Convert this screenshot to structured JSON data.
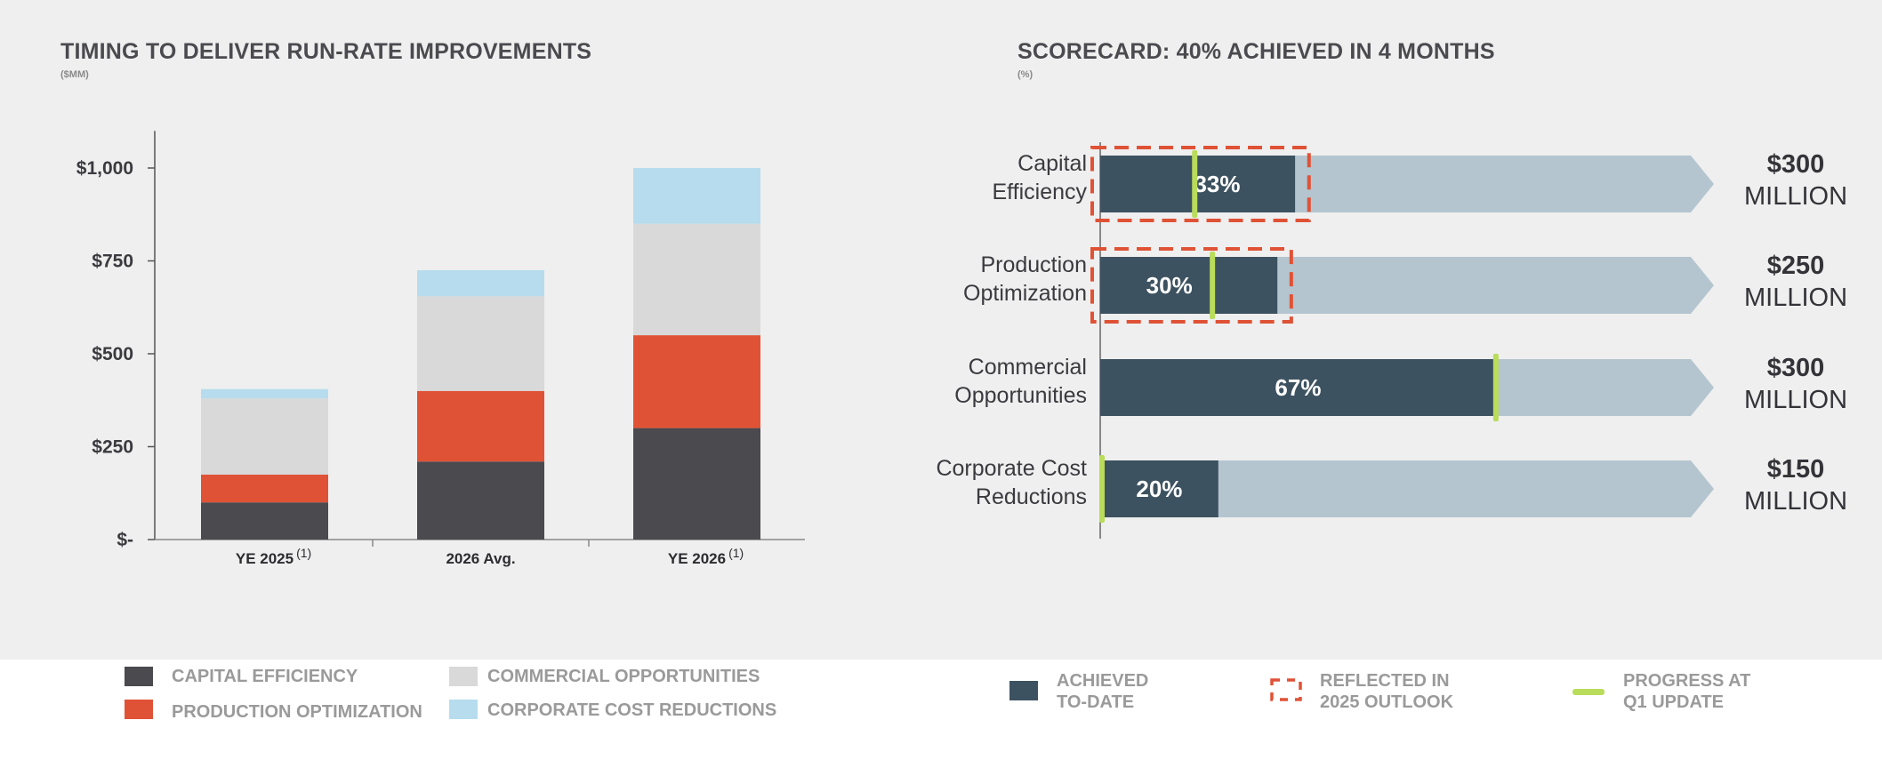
{
  "colors": {
    "capital_efficiency": "#4a4a4f",
    "production_optimization": "#e05236",
    "commercial_opportunities": "#d9d9d9",
    "corporate_cost_reductions": "#b6dcee",
    "achieved": "#3d5260",
    "remaining": "#b4c5cf",
    "reflected_outline": "#e05236",
    "progress_marker": "#b9dc5a"
  },
  "left": {
    "title": "TIMING TO DELIVER RUN-RATE IMPROVEMENTS",
    "subtitle": "($MM)"
  },
  "right": {
    "title": "SCORECARD: 40% ACHIEVED IN 4 MONTHS",
    "subtitle": "(%)"
  },
  "chart_data": [
    {
      "type": "bar",
      "stacked": true,
      "title": "TIMING TO DELIVER RUN-RATE IMPROVEMENTS",
      "subtitle": "($MM)",
      "categories": [
        "YE 2025",
        "2026 Avg.",
        "YE 2026"
      ],
      "category_footnotes": [
        "(1)",
        "",
        "(1)"
      ],
      "ylim": [
        0,
        1100
      ],
      "yticks": [
        {
          "value": 0,
          "label": "$-"
        },
        {
          "value": 250,
          "label": "$250"
        },
        {
          "value": 500,
          "label": "$500"
        },
        {
          "value": 750,
          "label": "$750"
        },
        {
          "value": 1000,
          "label": "$1,000"
        }
      ],
      "grid": false,
      "series": [
        {
          "name": "CAPITAL EFFICIENCY",
          "color_key": "capital_efficiency",
          "values": [
            100,
            210,
            300
          ]
        },
        {
          "name": "PRODUCTION OPTIMIZATION",
          "color_key": "production_optimization",
          "values": [
            75,
            190,
            250
          ]
        },
        {
          "name": "COMMERCIAL OPPORTUNITIES",
          "color_key": "commercial_opportunities",
          "values": [
            205,
            255,
            300
          ]
        },
        {
          "name": "CORPORATE COST REDUCTIONS",
          "color_key": "corporate_cost_reductions",
          "values": [
            25,
            70,
            150
          ]
        }
      ],
      "legend_position": "bottom"
    },
    {
      "type": "bar",
      "orientation": "horizontal",
      "title": "SCORECARD: 40% ACHIEVED IN 4 MONTHS",
      "subtitle": "(%)",
      "categories": [
        [
          "Capital",
          "Efficiency"
        ],
        [
          "Production",
          "Optimization"
        ],
        [
          "Commercial",
          "Opportunities"
        ],
        [
          "Corporate Cost",
          "Reductions"
        ]
      ],
      "achieved_pct": [
        33,
        30,
        67,
        20
      ],
      "achieved_labels": [
        "33%",
        "30%",
        "67%",
        "20%"
      ],
      "q1_progress_pct": [
        16,
        19,
        67,
        0
      ],
      "reflected_in_2025_outlook_pct": [
        34,
        31,
        null,
        null
      ],
      "targets": [
        {
          "amount": "$300",
          "unit": "MILLION"
        },
        {
          "amount": "$250",
          "unit": "MILLION"
        },
        {
          "amount": "$300",
          "unit": "MILLION"
        },
        {
          "amount": "$150",
          "unit": "MILLION"
        }
      ],
      "legend_position": "bottom"
    }
  ],
  "legend_left": {
    "items": [
      "CAPITAL EFFICIENCY",
      "PRODUCTION OPTIMIZATION",
      "COMMERCIAL OPPORTUNITIES",
      "CORPORATE COST REDUCTIONS"
    ]
  },
  "legend_right": {
    "achieved": [
      "ACHIEVED",
      "TO-DATE"
    ],
    "reflected": [
      "REFLECTED IN",
      "2025 OUTLOOK"
    ],
    "progress": [
      "PROGRESS AT",
      "Q1 UPDATE"
    ]
  }
}
